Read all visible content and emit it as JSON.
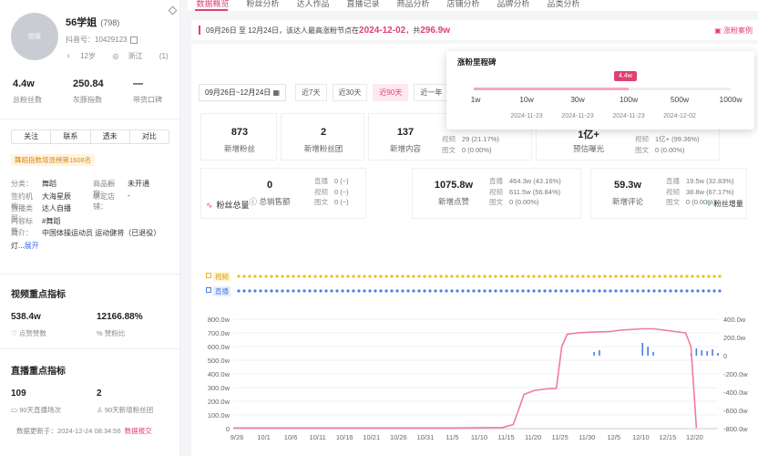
{
  "profile": {
    "name": "56学姐",
    "count": "(798)",
    "id_label": "抖音号：10429123",
    "age": "12岁",
    "location": "浙江",
    "extra": "(1)",
    "avatar_text": "图像"
  },
  "stats": [
    {
      "value": "4.4w",
      "label": "总粉丝数"
    },
    {
      "value": "250.84",
      "label": "灰豚指数"
    },
    {
      "value": "—",
      "label": "带货口碑"
    }
  ],
  "actions": [
    "关注",
    "联系",
    "透未",
    "对比"
  ],
  "rank_tag": "舞蹈指数增涨榜第1608名",
  "info_rows": [
    {
      "k": "分类：",
      "v": "舞蹈",
      "k2": "商品橱窗：",
      "v2": "未开通"
    },
    {
      "k": "签约机构：",
      "v": "大海星辰",
      "k2": "绑定店铺：",
      "v2": "-"
    },
    {
      "k": "直播类型：",
      "v": "达人自播",
      "k2": "",
      "v2": ""
    },
    {
      "k": "内容标签：",
      "v": "#舞蹈",
      "k2": "",
      "v2": ""
    },
    {
      "k": "简介：",
      "v": "中国体操运动员 运动健将（已退役）",
      "k2": "",
      "v2": ""
    },
    {
      "k": "",
      "v": "灯...",
      "k2": "",
      "v2": "展开"
    }
  ],
  "video_section": {
    "title": "视频重点指标",
    "metrics": [
      {
        "value": "538.4w",
        "label": "点赞赞数"
      },
      {
        "value": "12166.88%",
        "label": "赞粉比"
      }
    ]
  },
  "live_section": {
    "title": "直播重点指标",
    "metrics": [
      {
        "value": "109",
        "label": "90天直播场次"
      },
      {
        "value": "2",
        "label": "90天新增粉丝团"
      }
    ]
  },
  "updated": {
    "text": "数据更新于：2024-12-24 08:34:56",
    "link": "数据报交"
  },
  "tabs": [
    "数据概览",
    "粉丝分析",
    "达人作品",
    "直播记录",
    "商品分析",
    "店铺分析",
    "品牌分析",
    "品类分析"
  ],
  "notice": {
    "prefix": "09月26日 至 12月24日，该达人最高涨粉节点在",
    "date": "2024-12-02",
    "mid": "，共",
    "amount": "296.9w",
    "right_link": "涨粉案例"
  },
  "filters": {
    "date_range": "09月26日~12月24日",
    "ranges": [
      "近7天",
      "近30天",
      "近90天",
      "近一年"
    ],
    "active_range": "近90天"
  },
  "metric_cards": [
    {
      "value": "873",
      "label": "新增粉丝"
    },
    {
      "value": "2",
      "label": "新增粉丝团"
    },
    {
      "value": "137",
      "label": "新增内容",
      "subs": [
        {
          "t": "视频",
          "v": "29 (21.17%)"
        },
        {
          "t": "图文",
          "v": "0 (0.00%)"
        }
      ]
    },
    {
      "value": "1亿+",
      "label": "预估曝光",
      "subs": [
        {
          "t": "视频",
          "v": "1亿+ (99.36%)"
        },
        {
          "t": "图文",
          "v": "0 (0.00%)"
        }
      ]
    },
    {
      "value": "0",
      "label": "总销售额",
      "subs": [
        {
          "t": "直播",
          "v": "0 (~)"
        },
        {
          "t": "视频",
          "v": "0 (~)"
        },
        {
          "t": "图文",
          "v": "0 (~)"
        }
      ]
    },
    {
      "value": "1075.8w",
      "label": "新增点赞",
      "subs": [
        {
          "t": "直播",
          "v": "464.3w (43.16%)"
        },
        {
          "t": "视频",
          "v": "611.5w (56.84%)"
        },
        {
          "t": "图文",
          "v": "0 (0.00%)"
        }
      ]
    },
    {
      "value": "59.3w",
      "label": "新增评论",
      "subs": [
        {
          "t": "直播",
          "v": "19.5w (32.83%)"
        },
        {
          "t": "视频",
          "v": "38.8w (67.17%)"
        },
        {
          "t": "图文",
          "v": "0 (0.00%)"
        }
      ]
    }
  ],
  "milestone": {
    "title": "涨粉里程碑",
    "badge": "4.4w",
    "ticks": [
      "1w",
      "10w",
      "30w",
      "100w",
      "500w",
      "1000w"
    ],
    "dates": [
      "2024-11-23",
      "2024-11-23",
      "2024-11-23",
      "2024-12-02"
    ]
  },
  "trend": {
    "title": "粉丝总量",
    "right_label": "粉丝增量",
    "legend_video": "视频",
    "legend_live": "直播"
  },
  "colors": {
    "accent": "#e04070",
    "line": "#f07aa0",
    "bar": "#4a7fe0"
  },
  "chart_data": {
    "type": "line",
    "categories": [
      "9/26",
      "10/1",
      "10/6",
      "10/11",
      "10/16",
      "10/21",
      "10/26",
      "10/31",
      "11/5",
      "11/10",
      "11/15",
      "11/20",
      "11/25",
      "11/30",
      "12/5",
      "12/10",
      "12/15",
      "12/20"
    ],
    "y_left": {
      "ticks": [
        "800.0w",
        "700.0w",
        "600.0w",
        "500.0w",
        "400.0w",
        "300.0w",
        "200.0w",
        "100.0w",
        "0"
      ],
      "lim": [
        0,
        800
      ]
    },
    "y_right": {
      "ticks": [
        "400.0w",
        "200.0w",
        "0",
        "-200.0w",
        "-400.0w",
        "-600.0w",
        "-800.0w"
      ],
      "lim": [
        -800,
        400
      ]
    },
    "series": [
      {
        "name": "粉丝总量",
        "axis": "left",
        "points": [
          [
            0,
            5
          ],
          [
            5,
            5
          ],
          [
            10,
            5
          ],
          [
            15,
            5
          ],
          [
            20,
            5
          ],
          [
            25,
            5
          ],
          [
            30,
            5
          ],
          [
            35,
            5
          ],
          [
            40,
            5
          ],
          [
            45,
            6
          ],
          [
            50,
            8
          ],
          [
            52,
            30
          ],
          [
            54,
            250
          ],
          [
            56,
            280
          ],
          [
            58,
            290
          ],
          [
            60,
            295
          ],
          [
            61,
            600
          ],
          [
            62,
            690
          ],
          [
            64,
            700
          ],
          [
            66,
            705
          ],
          [
            70,
            710
          ],
          [
            72,
            720
          ],
          [
            76,
            730
          ],
          [
            78,
            730
          ],
          [
            80,
            720
          ],
          [
            84,
            700
          ],
          [
            85,
            600
          ],
          [
            86,
            5
          ]
        ]
      },
      {
        "name": "粉丝增量",
        "axis": "right",
        "bars": [
          [
            67,
            40
          ],
          [
            68,
            60
          ],
          [
            76,
            140
          ],
          [
            77,
            100
          ],
          [
            78,
            40
          ],
          [
            85,
            20
          ],
          [
            86,
            80
          ],
          [
            87,
            60
          ],
          [
            88,
            50
          ],
          [
            89,
            70
          ],
          [
            90,
            30
          ]
        ]
      }
    ],
    "markers": {
      "video_row": "dots",
      "live_row": "dots"
    }
  }
}
